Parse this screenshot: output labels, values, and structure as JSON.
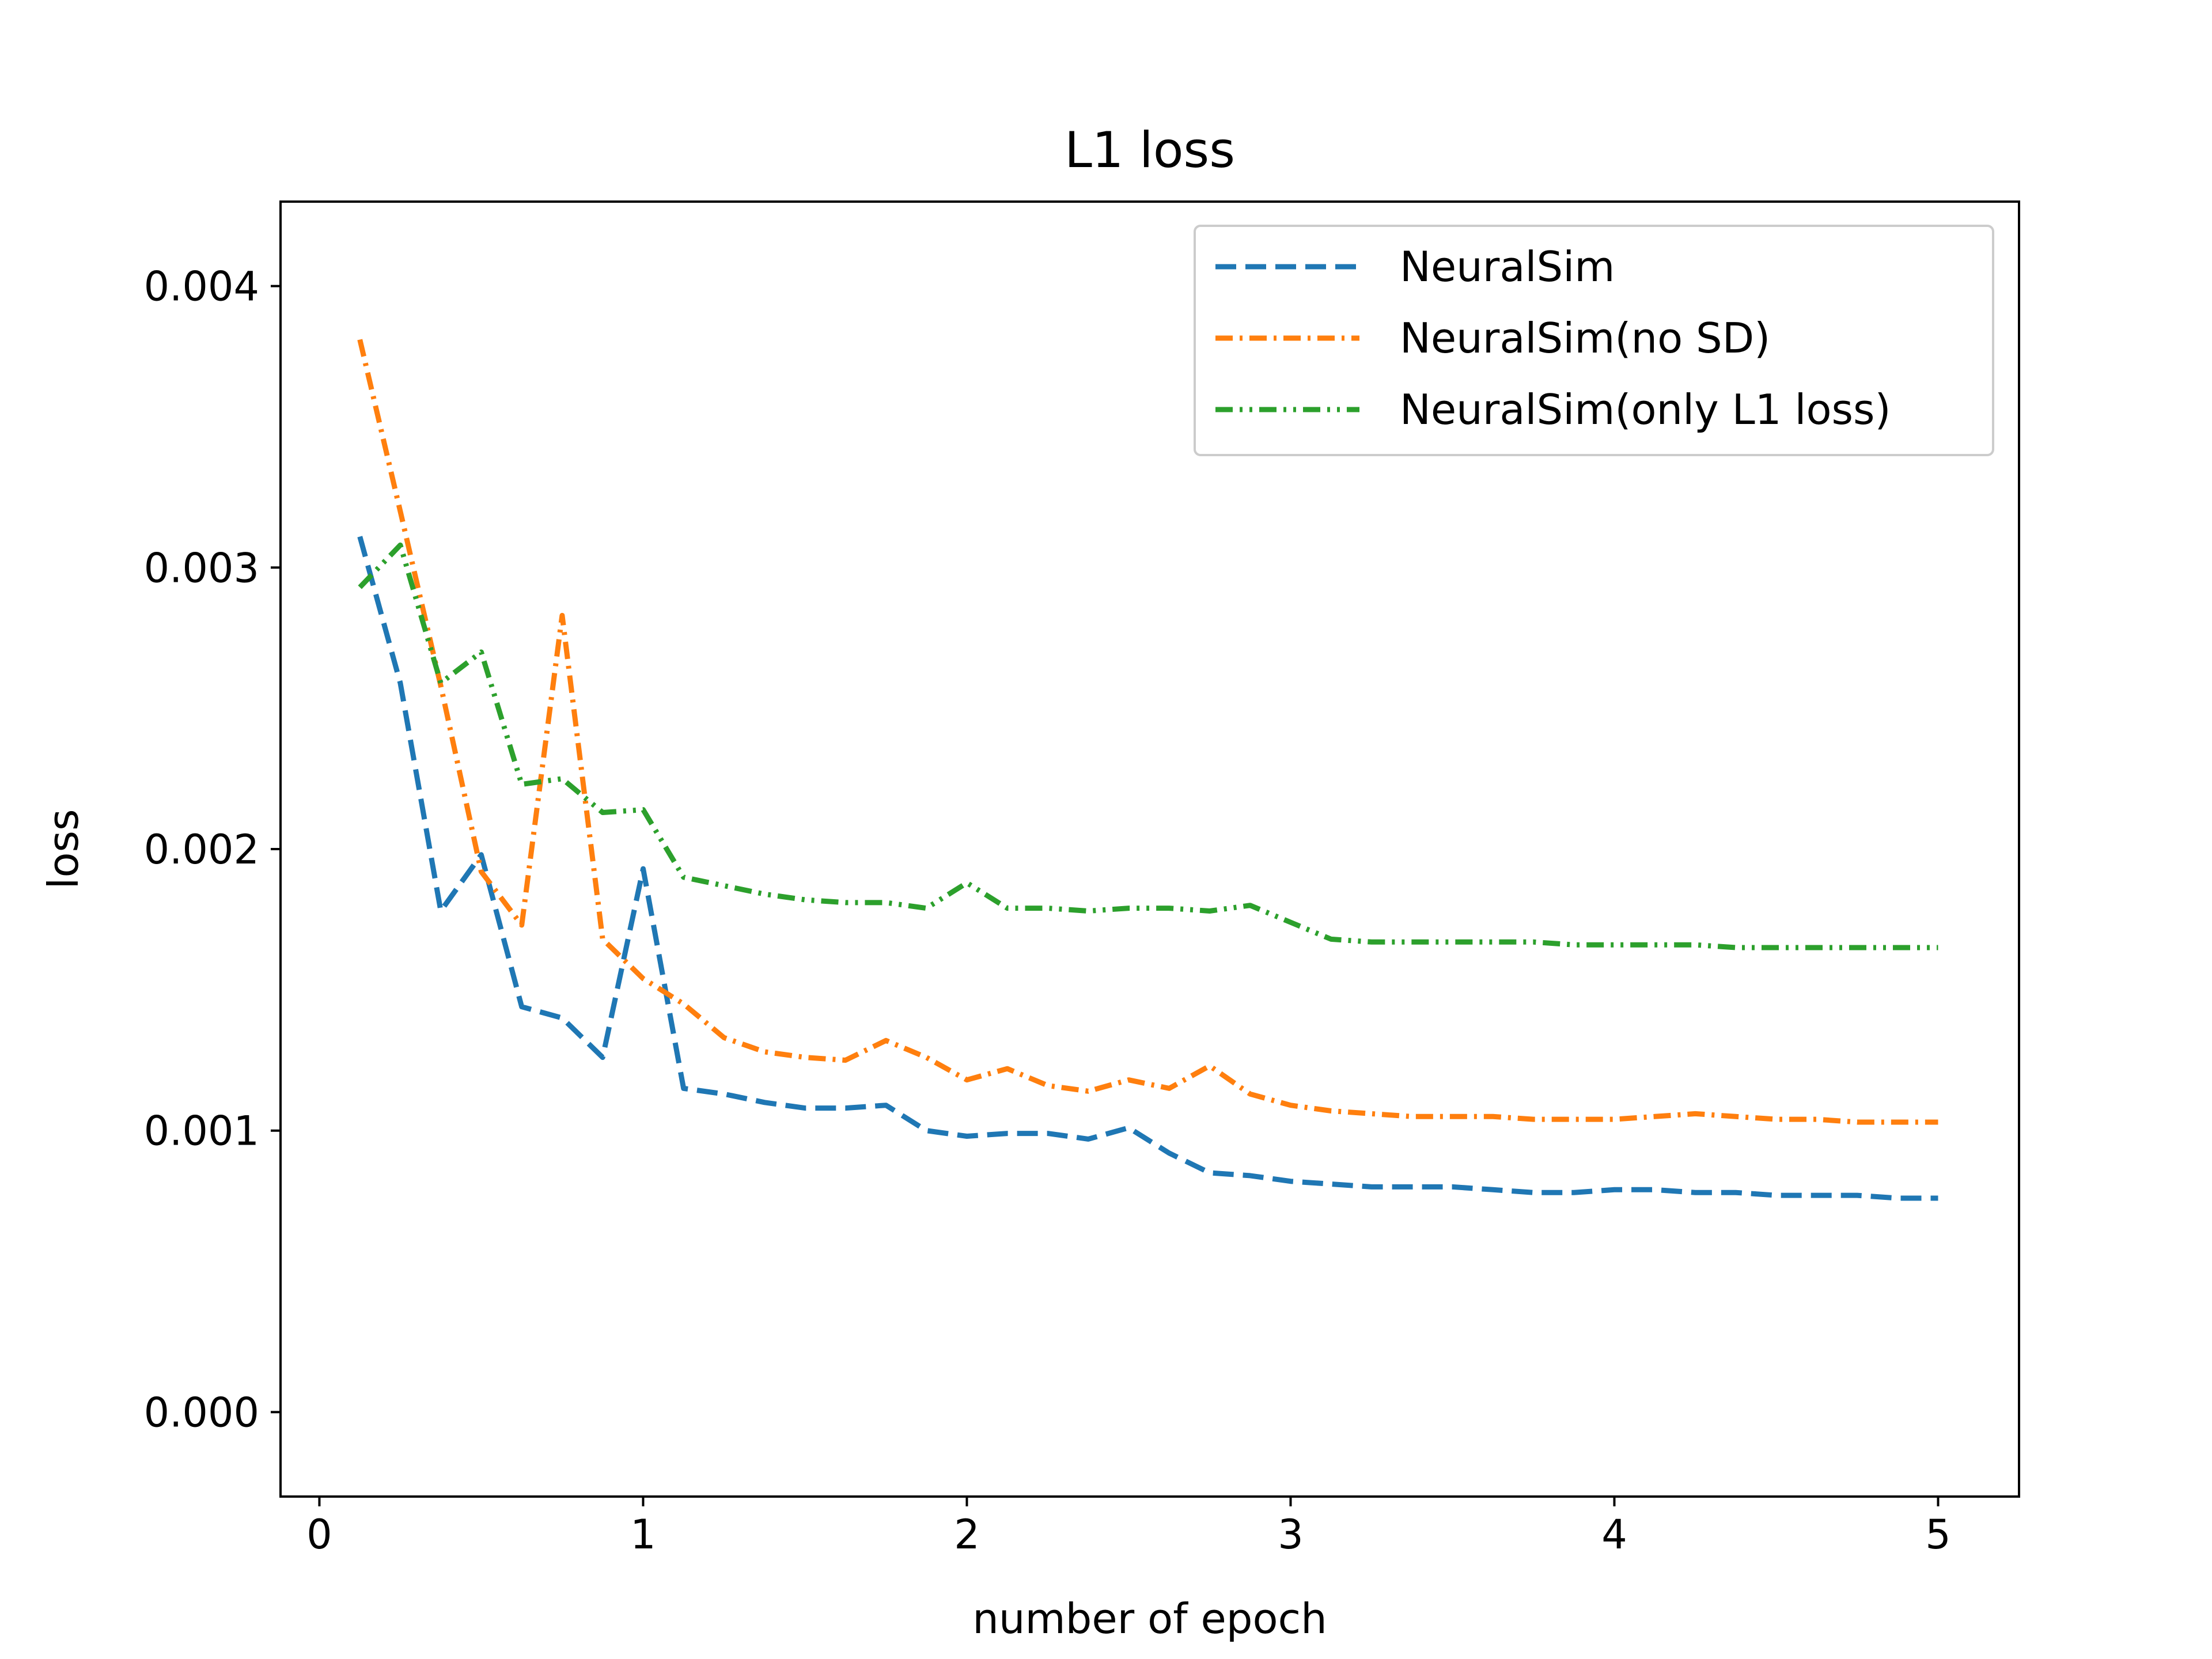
{
  "chart_data": {
    "type": "line",
    "title": "L1 loss",
    "xlabel": "number of epoch",
    "ylabel": "loss",
    "xlim": [
      -0.12,
      5.25
    ],
    "ylim": [
      -0.0003,
      0.0043
    ],
    "xticks": [
      0,
      1,
      2,
      3,
      4,
      5
    ],
    "xtick_labels": [
      "0",
      "1",
      "2",
      "3",
      "4",
      "5"
    ],
    "yticks": [
      0.0,
      0.001,
      0.002,
      0.003,
      0.004
    ],
    "ytick_labels": [
      "0.000",
      "0.001",
      "0.002",
      "0.003",
      "0.004"
    ],
    "grid": false,
    "legend_placement": "upper right",
    "x": [
      0.125,
      0.25,
      0.375,
      0.5,
      0.625,
      0.75,
      0.875,
      1.0,
      1.125,
      1.25,
      1.375,
      1.5,
      1.625,
      1.75,
      1.875,
      2.0,
      2.125,
      2.25,
      2.375,
      2.5,
      2.625,
      2.75,
      2.875,
      3.0,
      3.125,
      3.25,
      3.375,
      3.5,
      3.625,
      3.75,
      3.875,
      4.0,
      4.125,
      4.25,
      4.375,
      4.5,
      4.625,
      4.75,
      4.875,
      5.0
    ],
    "series": [
      {
        "name": "NeuralSim",
        "color": "#1f77b4",
        "style": "dashed",
        "values": [
          0.00311,
          0.00259,
          0.00178,
          0.00198,
          0.00144,
          0.0014,
          0.00126,
          0.00193,
          0.00115,
          0.00113,
          0.0011,
          0.00108,
          0.00108,
          0.00109,
          0.001,
          0.00098,
          0.00099,
          0.00099,
          0.00097,
          0.00101,
          0.00092,
          0.00085,
          0.00084,
          0.00082,
          0.00081,
          0.0008,
          0.0008,
          0.0008,
          0.00079,
          0.00078,
          0.00078,
          0.00079,
          0.00079,
          0.00078,
          0.00078,
          0.00077,
          0.00077,
          0.00077,
          0.00076,
          0.00076
        ]
      },
      {
        "name": "NeuralSim(no SD)",
        "color": "#ff7f0e",
        "style": "dashdot",
        "values": [
          0.00381,
          0.0032,
          0.00258,
          0.00192,
          0.00173,
          0.00283,
          0.00168,
          0.00154,
          0.00145,
          0.00133,
          0.00128,
          0.00126,
          0.00125,
          0.00132,
          0.00126,
          0.00118,
          0.00122,
          0.00116,
          0.00114,
          0.00118,
          0.00115,
          0.00123,
          0.00113,
          0.00109,
          0.00107,
          0.00106,
          0.00105,
          0.00105,
          0.00105,
          0.00104,
          0.00104,
          0.00104,
          0.00105,
          0.00106,
          0.00105,
          0.00104,
          0.00104,
          0.00103,
          0.00103,
          0.00103
        ]
      },
      {
        "name": "NeuralSim(only L1 loss)",
        "color": "#2ca02c",
        "style": "dashdotdot",
        "values": [
          0.00293,
          0.00308,
          0.00259,
          0.0027,
          0.00223,
          0.00225,
          0.00213,
          0.00214,
          0.0019,
          0.00187,
          0.00184,
          0.00182,
          0.00181,
          0.00181,
          0.00179,
          0.00188,
          0.00179,
          0.00179,
          0.00178,
          0.00179,
          0.00179,
          0.00178,
          0.0018,
          0.00174,
          0.00168,
          0.00167,
          0.00167,
          0.00167,
          0.00167,
          0.00167,
          0.00166,
          0.00166,
          0.00166,
          0.00166,
          0.00165,
          0.00165,
          0.00165,
          0.00165,
          0.00165,
          0.00165
        ]
      }
    ]
  }
}
